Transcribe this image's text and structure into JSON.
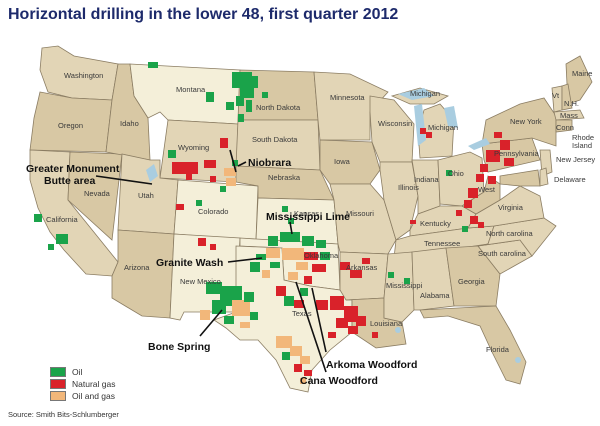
{
  "title": "Horizontal drilling in the lower 48, first quarter 2012",
  "source": "Source:  Smith Bits-Schlumberger",
  "colors": {
    "oil": "#1aa34a",
    "natural_gas": "#d9222a",
    "oil_and_gas": "#f2b77a",
    "state_fill": "#e2d5b6",
    "state_cream": "#f4efd9",
    "water": "#a9cde0",
    "title_color": "#1d2a6b"
  },
  "legend": [
    {
      "label": "Oil",
      "key": "oil"
    },
    {
      "label": "Natural gas",
      "key": "natural_gas"
    },
    {
      "label": "Oil and gas",
      "key": "oil_and_gas"
    }
  ],
  "regions": {
    "greater_monument_1": "Greater Monument",
    "greater_monument_2": "Butte area",
    "niobrara": "Niobrara",
    "mississippi_lime": "Mississippi Lime",
    "granite_wash": "Granite Wash",
    "bone_spring": "Bone Spring",
    "arkoma_woodford": "Arkoma Woodford",
    "cana_woodford": "Cana Woodford"
  },
  "states": {
    "washington": "Washington",
    "oregon": "Oregon",
    "california": "California",
    "nevada": "Nevada",
    "idaho": "Idaho",
    "montana": "Montana",
    "wyoming": "Wyoming",
    "utah": "Utah",
    "arizona": "Arizona",
    "colorado": "Colorado",
    "new_mexico": "New Mexico",
    "north_dakota": "North Dakota",
    "south_dakota": "South Dakota",
    "nebraska": "Nebraska",
    "kansas": "Kansas",
    "oklahoma": "Oklahoma",
    "texas": "Texas",
    "minnesota": "Minnesota",
    "iowa": "Iowa",
    "missouri": "Missouri",
    "arkansas": "Arkansas",
    "louisiana": "Louisiana",
    "wisconsin": "Wisconsin",
    "illinois": "Illinois",
    "michigan_upper": "Michigan",
    "michigan_lower": "Michigan",
    "indiana": "Indiana",
    "ohio": "Ohio",
    "kentucky": "Kentucky",
    "tennessee": "Tennessee",
    "mississippi": "Mississippi",
    "alabama": "Alabama",
    "georgia": "Georgia",
    "florida": "Florida",
    "south_carolina": "South carolina",
    "north_carolina": "North carolina",
    "virginia": "Virginia",
    "west": "West",
    "pennsylvania": "Pennsylvania",
    "new_york": "New York",
    "new_jersey": "New Jersey",
    "delaware": "Delaware",
    "maine": "Maine",
    "vt": "Vt",
    "nh": "N.H.",
    "mass": "Mass",
    "conn": "Conn",
    "rhode": "Rhode",
    "island": "Island"
  }
}
